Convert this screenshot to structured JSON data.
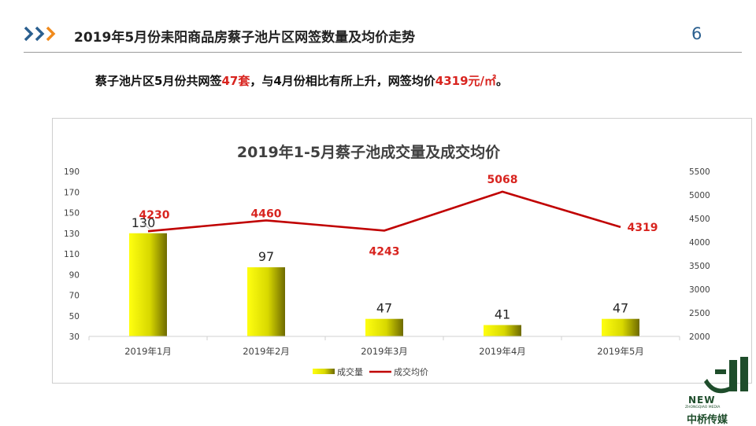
{
  "header": {
    "title": "2019年5月份耒阳商品房蔡子池片区网签数量及均价走势",
    "page_number": "6",
    "chevron_icon": "triple-chevron-icon",
    "accent_color": "#2a5f8f",
    "chevron_color": "#f08a1c"
  },
  "summary": {
    "part1": "蔡子池片区5月份共网签",
    "count": "47套",
    "part2": "，与4月份相比有所上升，网签均价",
    "price": "4319元/㎡",
    "part3": "。",
    "highlight_color": "#d8241f"
  },
  "logo": {
    "icon": "zhongqiao-logo-icon",
    "text_new": "NEW",
    "text_sub": "ZHONGQIAO MEDIA",
    "text_cn": "中桥传媒"
  },
  "chart_data": {
    "type": "bar",
    "title": "2019年1-5月蔡子池成交量及成交均价",
    "categories": [
      "2019年1月",
      "2019年2月",
      "2019年3月",
      "2019年4月",
      "2019年5月"
    ],
    "series": [
      {
        "name": "成交量",
        "type": "bar",
        "axis": "left",
        "values": [
          130,
          97,
          47,
          41,
          47
        ],
        "color": "#e6e600"
      },
      {
        "name": "成交均价",
        "type": "line",
        "axis": "right",
        "values": [
          4230,
          4460,
          4243,
          5068,
          4319
        ],
        "color": "#c00000"
      }
    ],
    "y_left": {
      "ticks": [
        30,
        50,
        70,
        90,
        110,
        130,
        150,
        170,
        190
      ],
      "range": [
        30,
        190
      ]
    },
    "y_right": {
      "ticks": [
        2000,
        2500,
        3000,
        3500,
        4000,
        4500,
        5000,
        5500
      ],
      "range": [
        2000,
        5500
      ]
    },
    "legend_position": "bottom",
    "grid": false
  }
}
